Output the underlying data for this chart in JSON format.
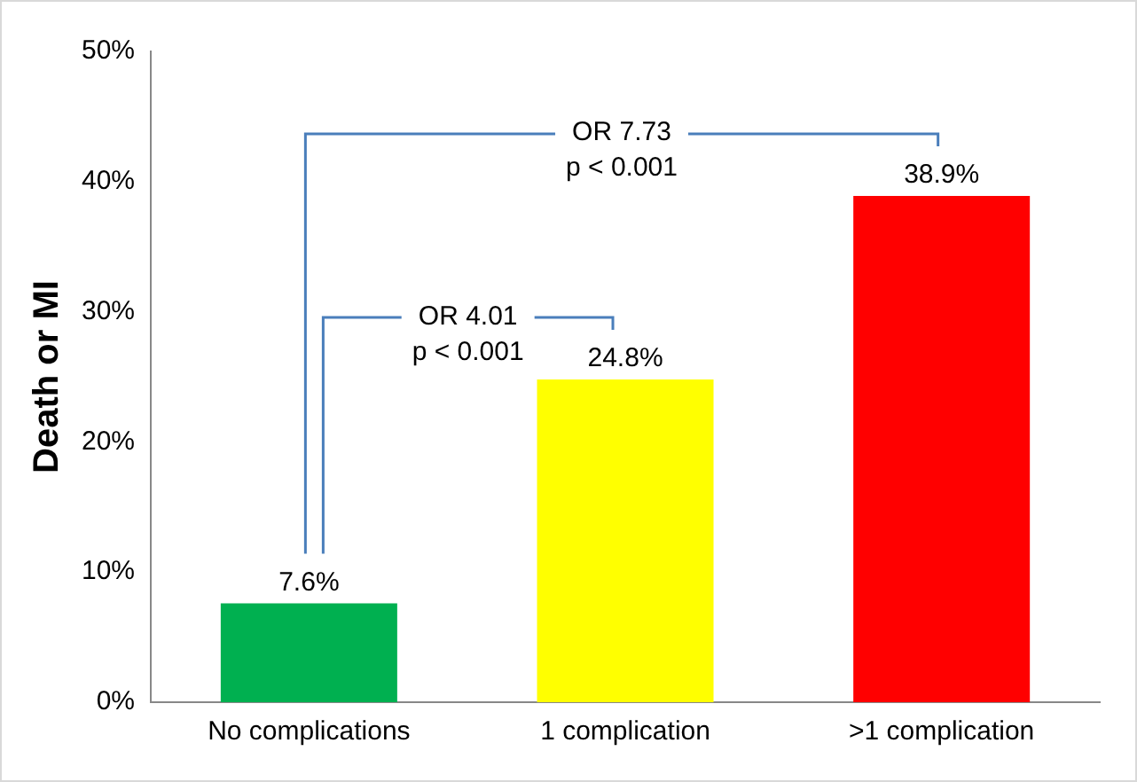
{
  "chart_data": {
    "type": "bar",
    "ylabel": "Death or MI",
    "categories": [
      "No complications",
      "1 complication",
      ">1 complication"
    ],
    "values": [
      7.6,
      24.8,
      38.9
    ],
    "colors": [
      "#00b050",
      "#ffff00",
      "#ff0000"
    ],
    "value_labels": [
      "7.6%",
      "24.8%",
      "38.9%"
    ],
    "ylim": [
      0,
      50
    ],
    "yticks": [
      {
        "value": 0,
        "label": "0%"
      },
      {
        "value": 10,
        "label": "10%"
      },
      {
        "value": 20,
        "label": "20%"
      },
      {
        "value": 30,
        "label": "30%"
      },
      {
        "value": 40,
        "label": "40%"
      },
      {
        "value": 50,
        "label": "50%"
      }
    ],
    "annotations": [
      "OR 4.01\np < 0.001",
      "OR 7.73\np < 0.001"
    ],
    "grid": false,
    "legend": false
  }
}
